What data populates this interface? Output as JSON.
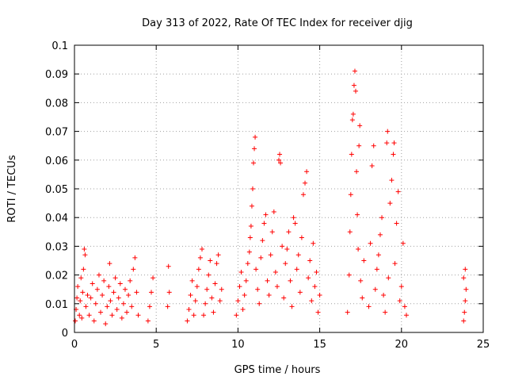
{
  "chart_data": {
    "type": "scatter",
    "title": "Day 313 of 2022, Rate Of TEC Index for receiver djig",
    "xlabel": "GPS time / hours",
    "ylabel": "ROTI / TECUs",
    "xlim": [
      0,
      25
    ],
    "ylim": [
      0,
      0.1
    ],
    "x_ticks": [
      0,
      5,
      10,
      15,
      20,
      25
    ],
    "y_ticks": [
      0,
      0.01,
      0.02,
      0.03,
      0.04,
      0.05,
      0.06,
      0.07,
      0.08,
      0.09,
      0.1
    ],
    "x_tick_labels": [
      "0",
      "5",
      "10",
      "15",
      "20",
      "25"
    ],
    "y_tick_labels": [
      "0",
      "0.01",
      "0.02",
      "0.03",
      "0.04",
      "0.05",
      "0.06",
      "0.07",
      "0.08",
      "0.09",
      "0.1"
    ],
    "grid": true,
    "marker": "+",
    "marker_color": "#ff0000",
    "series": [
      {
        "points": [
          [
            0.05,
            0.004
          ],
          [
            0.1,
            0.008
          ],
          [
            0.15,
            0.012
          ],
          [
            0.2,
            0.016
          ],
          [
            0.3,
            0.006
          ],
          [
            0.35,
            0.011
          ],
          [
            0.4,
            0.019
          ],
          [
            0.45,
            0.005
          ],
          [
            0.5,
            0.014
          ],
          [
            0.55,
            0.022
          ],
          [
            0.6,
            0.029
          ],
          [
            0.65,
            0.027
          ],
          [
            0.7,
            0.009
          ],
          [
            0.8,
            0.013
          ],
          [
            0.9,
            0.006
          ],
          [
            1.0,
            0.012
          ],
          [
            1.1,
            0.017
          ],
          [
            1.2,
            0.004
          ],
          [
            1.3,
            0.01
          ],
          [
            1.4,
            0.015
          ],
          [
            1.5,
            0.02
          ],
          [
            1.6,
            0.007
          ],
          [
            1.7,
            0.013
          ],
          [
            1.8,
            0.018
          ],
          [
            1.9,
            0.003
          ],
          [
            2.0,
            0.009
          ],
          [
            2.1,
            0.016
          ],
          [
            2.15,
            0.024
          ],
          [
            2.2,
            0.011
          ],
          [
            2.3,
            0.006
          ],
          [
            2.4,
            0.014
          ],
          [
            2.5,
            0.019
          ],
          [
            2.6,
            0.008
          ],
          [
            2.7,
            0.012
          ],
          [
            2.8,
            0.017
          ],
          [
            2.9,
            0.005
          ],
          [
            3.0,
            0.01
          ],
          [
            3.1,
            0.015
          ],
          [
            3.2,
            0.007
          ],
          [
            3.3,
            0.013
          ],
          [
            3.4,
            0.018
          ],
          [
            3.5,
            0.009
          ],
          [
            3.6,
            0.022
          ],
          [
            3.7,
            0.026
          ],
          [
            3.8,
            0.014
          ],
          [
            3.9,
            0.006
          ],
          [
            4.5,
            0.004
          ],
          [
            4.6,
            0.009
          ],
          [
            4.7,
            0.014
          ],
          [
            4.8,
            0.019
          ],
          [
            5.7,
            0.009
          ],
          [
            5.8,
            0.014
          ],
          [
            5.75,
            0.023
          ],
          [
            6.9,
            0.004
          ],
          [
            7.0,
            0.008
          ],
          [
            7.1,
            0.013
          ],
          [
            7.2,
            0.018
          ],
          [
            7.3,
            0.006
          ],
          [
            7.4,
            0.011
          ],
          [
            7.5,
            0.016
          ],
          [
            7.6,
            0.022
          ],
          [
            7.7,
            0.026
          ],
          [
            7.8,
            0.029
          ],
          [
            7.9,
            0.006
          ],
          [
            8.0,
            0.01
          ],
          [
            8.1,
            0.015
          ],
          [
            8.2,
            0.02
          ],
          [
            8.3,
            0.025
          ],
          [
            8.4,
            0.012
          ],
          [
            8.5,
            0.007
          ],
          [
            8.6,
            0.017
          ],
          [
            8.7,
            0.024
          ],
          [
            8.8,
            0.027
          ],
          [
            8.9,
            0.011
          ],
          [
            9.0,
            0.015
          ],
          [
            9.9,
            0.006
          ],
          [
            10.0,
            0.011
          ],
          [
            10.1,
            0.016
          ],
          [
            10.2,
            0.021
          ],
          [
            10.3,
            0.008
          ],
          [
            10.4,
            0.013
          ],
          [
            10.5,
            0.018
          ],
          [
            10.6,
            0.024
          ],
          [
            10.7,
            0.028
          ],
          [
            10.75,
            0.033
          ],
          [
            10.8,
            0.037
          ],
          [
            10.85,
            0.044
          ],
          [
            10.9,
            0.05
          ],
          [
            10.95,
            0.059
          ],
          [
            11.0,
            0.064
          ],
          [
            11.05,
            0.068
          ],
          [
            11.1,
            0.022
          ],
          [
            11.2,
            0.015
          ],
          [
            11.3,
            0.01
          ],
          [
            11.4,
            0.026
          ],
          [
            11.5,
            0.032
          ],
          [
            11.6,
            0.038
          ],
          [
            11.7,
            0.041
          ],
          [
            11.8,
            0.018
          ],
          [
            11.9,
            0.013
          ],
          [
            12.0,
            0.027
          ],
          [
            12.1,
            0.035
          ],
          [
            12.2,
            0.042
          ],
          [
            12.3,
            0.021
          ],
          [
            12.4,
            0.016
          ],
          [
            12.5,
            0.06
          ],
          [
            12.55,
            0.062
          ],
          [
            12.6,
            0.059
          ],
          [
            12.7,
            0.03
          ],
          [
            12.8,
            0.012
          ],
          [
            12.9,
            0.024
          ],
          [
            13.0,
            0.029
          ],
          [
            13.1,
            0.035
          ],
          [
            13.2,
            0.018
          ],
          [
            13.3,
            0.009
          ],
          [
            13.4,
            0.04
          ],
          [
            13.5,
            0.038
          ],
          [
            13.6,
            0.022
          ],
          [
            13.7,
            0.027
          ],
          [
            13.8,
            0.014
          ],
          [
            13.9,
            0.033
          ],
          [
            14.0,
            0.048
          ],
          [
            14.1,
            0.052
          ],
          [
            14.2,
            0.056
          ],
          [
            14.3,
            0.019
          ],
          [
            14.4,
            0.025
          ],
          [
            14.5,
            0.011
          ],
          [
            14.6,
            0.031
          ],
          [
            14.7,
            0.016
          ],
          [
            14.8,
            0.021
          ],
          [
            14.9,
            0.007
          ],
          [
            15.0,
            0.013
          ],
          [
            16.7,
            0.007
          ],
          [
            16.8,
            0.02
          ],
          [
            16.85,
            0.035
          ],
          [
            16.9,
            0.048
          ],
          [
            16.95,
            0.062
          ],
          [
            17.0,
            0.074
          ],
          [
            17.05,
            0.076
          ],
          [
            17.1,
            0.086
          ],
          [
            17.15,
            0.091
          ],
          [
            17.2,
            0.084
          ],
          [
            17.25,
            0.056
          ],
          [
            17.3,
            0.041
          ],
          [
            17.35,
            0.029
          ],
          [
            17.4,
            0.065
          ],
          [
            17.45,
            0.072
          ],
          [
            17.5,
            0.018
          ],
          [
            17.6,
            0.012
          ],
          [
            17.7,
            0.025
          ],
          [
            18.0,
            0.009
          ],
          [
            18.1,
            0.031
          ],
          [
            18.2,
            0.058
          ],
          [
            18.3,
            0.065
          ],
          [
            18.4,
            0.015
          ],
          [
            18.5,
            0.022
          ],
          [
            18.6,
            0.027
          ],
          [
            18.7,
            0.034
          ],
          [
            18.8,
            0.04
          ],
          [
            18.9,
            0.013
          ],
          [
            19.0,
            0.007
          ],
          [
            19.1,
            0.066
          ],
          [
            19.15,
            0.07
          ],
          [
            19.2,
            0.019
          ],
          [
            19.3,
            0.045
          ],
          [
            19.4,
            0.053
          ],
          [
            19.5,
            0.062
          ],
          [
            19.55,
            0.066
          ],
          [
            19.6,
            0.024
          ],
          [
            19.7,
            0.038
          ],
          [
            19.8,
            0.049
          ],
          [
            19.9,
            0.011
          ],
          [
            20.0,
            0.016
          ],
          [
            20.1,
            0.031
          ],
          [
            20.2,
            0.009
          ],
          [
            20.3,
            0.006
          ],
          [
            23.8,
            0.004
          ],
          [
            23.85,
            0.007
          ],
          [
            23.9,
            0.011
          ],
          [
            23.95,
            0.015
          ],
          [
            23.8,
            0.019
          ],
          [
            23.9,
            0.022
          ]
        ]
      }
    ]
  }
}
